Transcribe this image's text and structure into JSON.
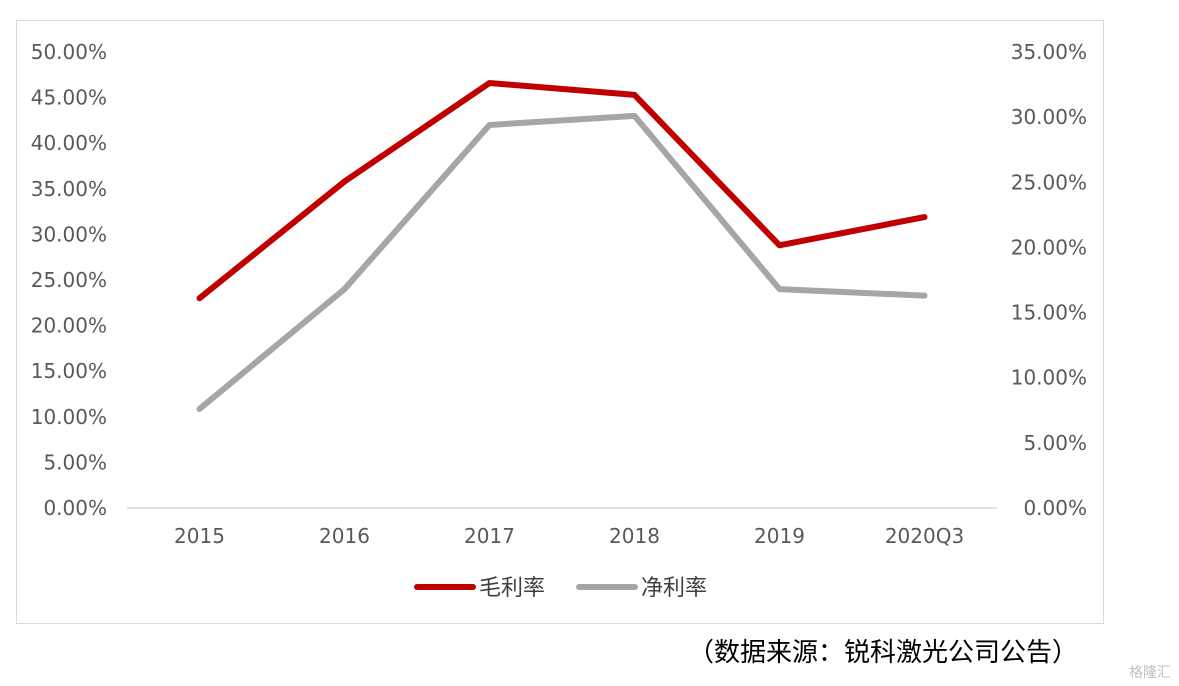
{
  "chart_data": {
    "type": "line",
    "categories": [
      "2015",
      "2016",
      "2017",
      "2018",
      "2019",
      "2020Q3"
    ],
    "series": [
      {
        "name": "毛利率",
        "axis": "left",
        "color": "#c00000",
        "values": [
          23.0,
          35.8,
          46.6,
          45.3,
          28.8,
          31.9
        ]
      },
      {
        "name": "净利率",
        "axis": "right",
        "color": "#a6a6a6",
        "values": [
          7.6,
          16.8,
          29.4,
          30.1,
          16.8,
          16.3
        ]
      }
    ],
    "y_left": {
      "min": 0,
      "max": 50,
      "step": 5,
      "ticks": [
        "0.00%",
        "5.00%",
        "10.00%",
        "15.00%",
        "20.00%",
        "25.00%",
        "30.00%",
        "35.00%",
        "40.00%",
        "45.00%",
        "50.00%"
      ]
    },
    "y_right": {
      "min": 0,
      "max": 35,
      "step": 5,
      "ticks": [
        "0.00%",
        "5.00%",
        "10.00%",
        "15.00%",
        "20.00%",
        "25.00%",
        "30.00%",
        "35.00%"
      ]
    },
    "grid": false,
    "legend_position": "bottom"
  },
  "legend": [
    "毛利率",
    "净利率"
  ],
  "source_note": "（数据来源：锐科激光公司公告）",
  "watermark": "格隆汇"
}
